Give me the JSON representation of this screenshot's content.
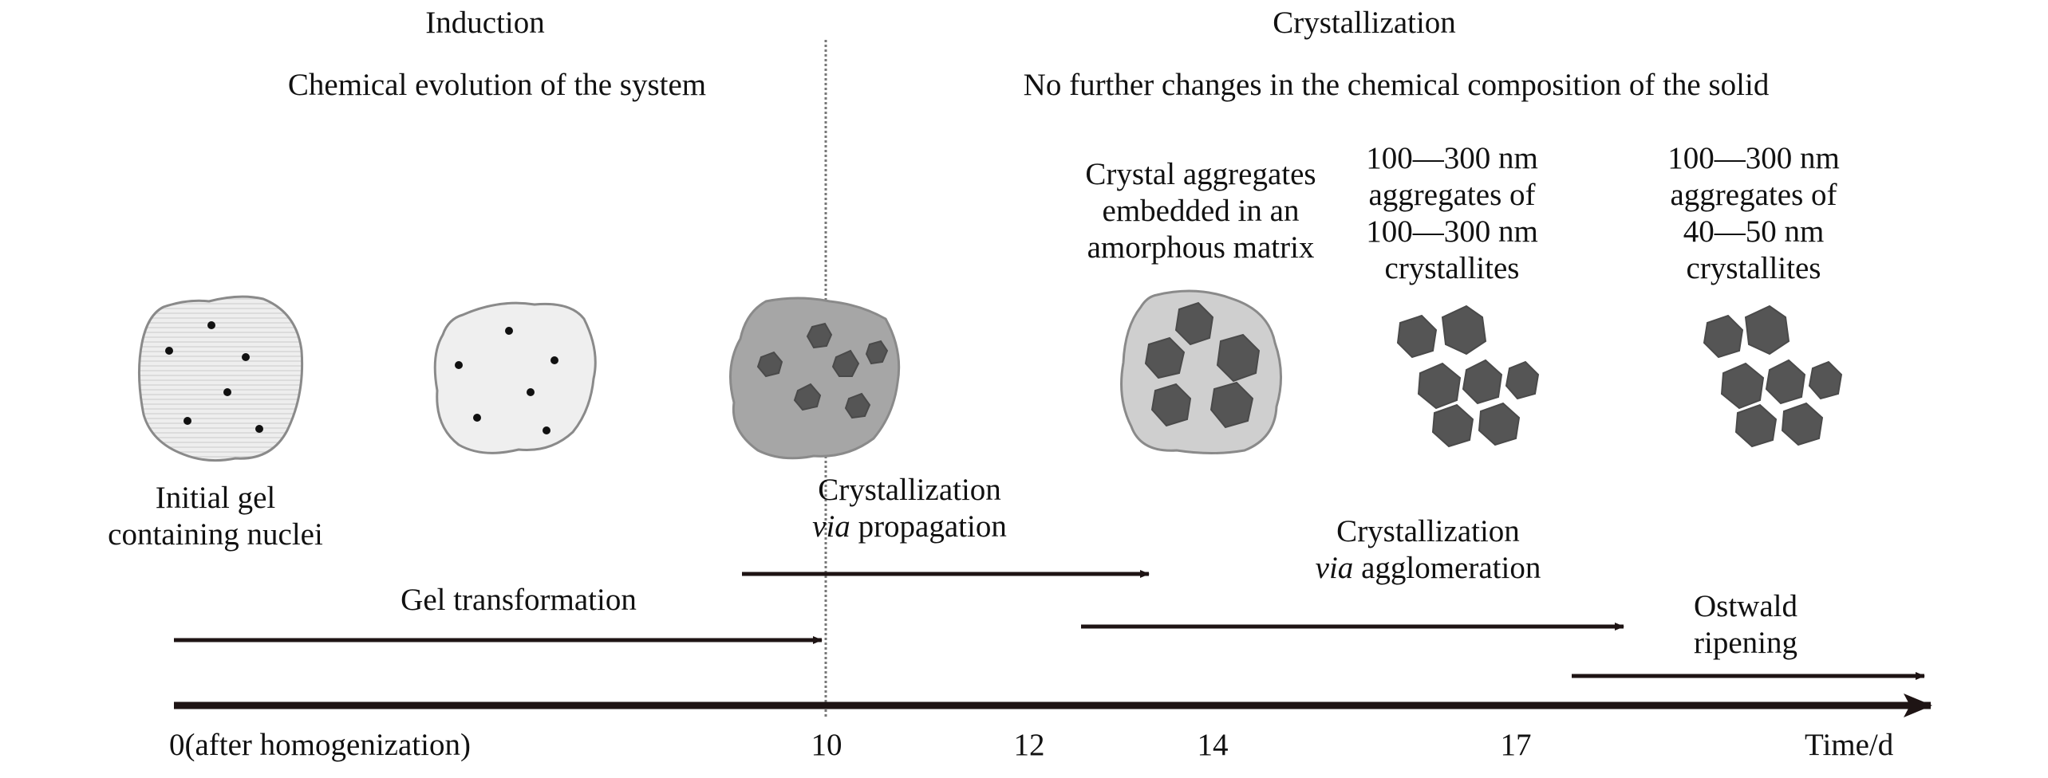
{
  "phases": {
    "induction": {
      "title": "Induction",
      "subtitle": "Chemical evolution of the system"
    },
    "crystallization": {
      "title": "Crystallization",
      "subtitle": "No further changes in the chemical composition of the solid"
    }
  },
  "stages": {
    "s1": [
      "Initial gel",
      "containing nuclei"
    ],
    "s4": [
      "Crystal aggregates",
      "embedded in an",
      "amorphous matrix"
    ],
    "s5": [
      "100—300 nm",
      "aggregates of",
      "100—300 nm",
      "crystallites"
    ],
    "s6": [
      "100—300 nm",
      "aggregates of",
      "40—50 nm",
      "crystallites"
    ]
  },
  "processes": {
    "gel": "Gel transformation",
    "propagation": {
      "line1": "Crystallization",
      "via": "via",
      "rest": " propagation"
    },
    "agglomeration": {
      "line1": "Crystallization",
      "via": "via",
      "rest": " agglomeration"
    },
    "ostwald": [
      "Ostwald",
      "ripening"
    ]
  },
  "timeline": {
    "ticks": [
      "0(after homogenization)",
      "10",
      "12",
      "14",
      "17"
    ],
    "axis_label": "Time/d"
  },
  "colors": {
    "gel_light": "#eeeeee",
    "gel_medium": "#d2d2d2",
    "gel_dark": "#a6a6a6",
    "crystal": "#555555",
    "outline": "#8a8a8a",
    "arrow": "#1e1414"
  }
}
